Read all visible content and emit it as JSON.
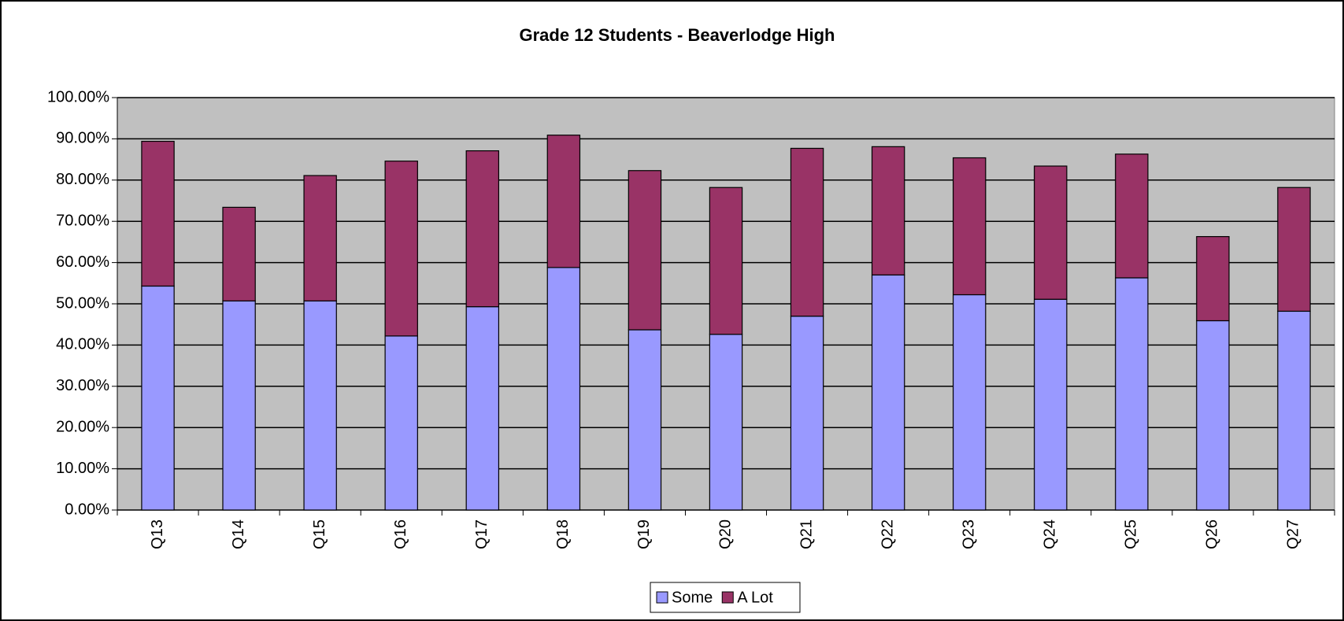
{
  "chart_data": {
    "type": "stacked_bar",
    "title": "Grade 12 Students - Beaverlodge High",
    "categories": [
      "Q13",
      "Q14",
      "Q15",
      "Q16",
      "Q17",
      "Q18",
      "Q19",
      "Q20",
      "Q21",
      "Q22",
      "Q23",
      "Q24",
      "Q25",
      "Q26",
      "Q27"
    ],
    "series": [
      {
        "name": "Some",
        "color": "#9999ff",
        "values": [
          54.3,
          50.7,
          50.7,
          42.2,
          49.3,
          58.8,
          43.7,
          42.6,
          47.0,
          57.0,
          52.2,
          51.1,
          56.3,
          45.9,
          48.2
        ]
      },
      {
        "name": "A Lot",
        "color": "#993366",
        "values": [
          35.1,
          22.7,
          30.4,
          42.4,
          37.8,
          32.1,
          38.6,
          35.6,
          40.7,
          31.1,
          33.2,
          32.3,
          30.0,
          20.4,
          30.0
        ]
      }
    ],
    "ylim": [
      0,
      100
    ],
    "yticks": [
      {
        "value": 0,
        "label": "0.00%"
      },
      {
        "value": 10,
        "label": "10.00%"
      },
      {
        "value": 20,
        "label": "20.00%"
      },
      {
        "value": 30,
        "label": "30.00%"
      },
      {
        "value": 40,
        "label": "40.00%"
      },
      {
        "value": 50,
        "label": "50.00%"
      },
      {
        "value": 60,
        "label": "60.00%"
      },
      {
        "value": 70,
        "label": "70.00%"
      },
      {
        "value": 80,
        "label": "80.00%"
      },
      {
        "value": 90,
        "label": "90.00%"
      },
      {
        "value": 100,
        "label": "100.00%"
      }
    ],
    "grid": true,
    "plot_background": "#c0c0c0",
    "legend": "bottom"
  }
}
